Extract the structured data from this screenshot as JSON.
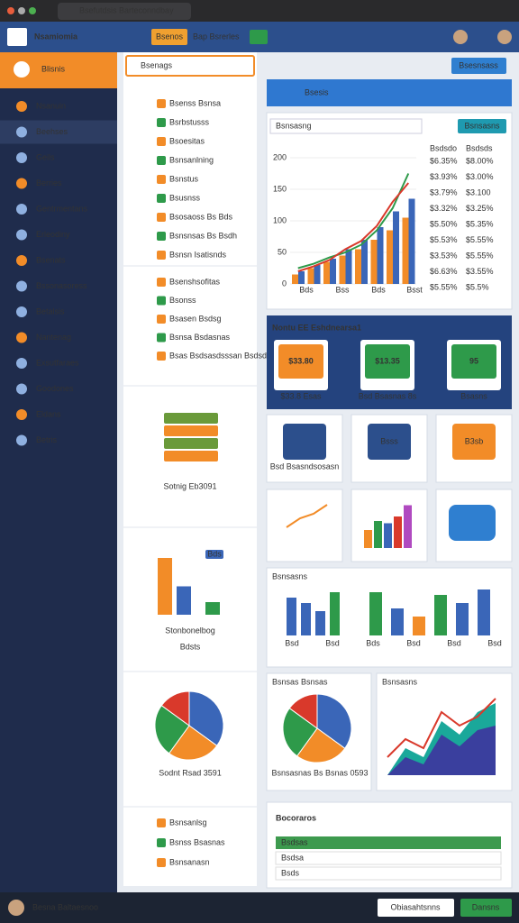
{
  "browser": {
    "tab": "Bsefutdsis Barteconndbay"
  },
  "header": {
    "app": "Nsamiomia",
    "tab1": "Bsenos",
    "tab2": "Bap Bsrerles"
  },
  "sidebar": {
    "brand": "Blisnis",
    "items": [
      "Nsanuin",
      "Beehses",
      "Geils",
      "Berries",
      "Gentrmentans",
      "Erleodiny",
      "Bsenats",
      "Bssonasoress",
      "Betalsis",
      "Nantenag",
      "Exsutfaraes",
      "Goodones",
      "Eldans",
      "Betris"
    ]
  },
  "tree": {
    "search": "Bsenags",
    "group1": [
      "Bsenss Bsnsa",
      "Bsrbstusss",
      "Bsoesitas",
      "Bsnsanlning",
      "Bsnstus",
      "Bsusnss",
      "Bsosaoss Bs Bds",
      "Bsnsnsas Bs Bsdh",
      "Bsnsn Isatisnds"
    ],
    "group2": [
      "Bsenshsofitas",
      "Bsonss",
      "Bsasen Bsdsg",
      "Bsnsa Bsdasnas",
      "Bsas Bsdsasdsssan Bsdsd"
    ],
    "group3": [
      "Bsnsanlsg",
      "Bsnss Bsasnas",
      "Bsnsanasn"
    ]
  },
  "cards": {
    "books": "Sotnig Eb3091",
    "chart_title": "Stonbonelbog",
    "chart_sub": "Bdsts",
    "chart_badge": "Bds",
    "pie": "Sodnt Rsad 3591"
  },
  "main": {
    "panel": "Bsesis",
    "top_button": "Bsesnsass",
    "search": "Bsnsasng",
    "button": "Bsnsasns",
    "chart": {
      "type": "bar",
      "categories": [
        "Bds",
        "Bss",
        "Bds",
        "Bsst"
      ],
      "ylim": [
        0,
        200
      ],
      "yticks": [
        0,
        50,
        100,
        150,
        200
      ],
      "series": [
        {
          "color": "#f28c28",
          "values": [
            15,
            25,
            35,
            45,
            55,
            70,
            85,
            105
          ]
        },
        {
          "color": "#3a66b8",
          "values": [
            20,
            30,
            40,
            55,
            70,
            90,
            115,
            135
          ]
        },
        {
          "color": "#2e9a4a",
          "values": [
            25,
            32,
            42,
            50,
            62,
            85,
            120,
            175
          ],
          "kind": "line"
        },
        {
          "color": "#d9392b",
          "values": [
            20,
            28,
            38,
            55,
            68,
            92,
            130,
            160
          ],
          "kind": "line"
        }
      ]
    },
    "table": {
      "headers": [
        "Bsdsdo",
        "Bsdsds"
      ],
      "left": [
        "$6.35%",
        "$3.93%",
        "$3.79%",
        "$3.32%",
        "$5.50%",
        "$5.53%",
        "$3.53%",
        "$6.63%",
        "$5.55%"
      ],
      "right": [
        "$8.00%",
        "$3.00%",
        "$3.100",
        "$3.25%",
        "$5.35%",
        "$5.55%",
        "$5.55%",
        "$3.55%",
        "$5.5%"
      ]
    }
  },
  "promo": {
    "title": "Nontu EE Eshdnearsa1",
    "tiles": [
      "$33.80",
      "$13.35",
      "95"
    ],
    "captions": [
      "$33.8 Esas",
      "Bsd Bsasnas 8s",
      "Bsasns"
    ]
  },
  "row1": [
    "Bsd Bsasndsosasn",
    "Bsss",
    "B3sb"
  ],
  "mini": {
    "line": [
      30,
      50,
      60,
      80
    ],
    "bars1": [
      20,
      45,
      50,
      90
    ],
    "bars2": [
      40,
      60,
      55,
      70,
      95
    ],
    "bars3": [
      70,
      60,
      45,
      80
    ],
    "bars4": [
      80,
      50,
      35,
      75,
      60,
      85
    ]
  },
  "barcard": {
    "title": "Bsnsasns",
    "labels": [
      "Bsd",
      "Bsd",
      "Bds",
      "Bsd",
      "Bsd",
      "Bsd"
    ]
  },
  "piecard": {
    "title": "Bsnsas Bsnsas",
    "values": [
      35,
      25,
      25,
      15
    ],
    "colors": [
      "#3a66b8",
      "#f28c28",
      "#2e9a4a",
      "#d9392b"
    ],
    "legend": "Bsnsasnas Bs Bsnas 0593"
  },
  "areacard": {
    "title": "Bsnsasns"
  },
  "bottom": {
    "title": "Bocoraros",
    "rows": [
      "Bsdsas",
      "Bsdsa",
      "Bsds"
    ]
  },
  "footer": {
    "user": "Besna Baltaesnoo",
    "button1": "Obiasahtsnns",
    "button2": "Dansns"
  }
}
